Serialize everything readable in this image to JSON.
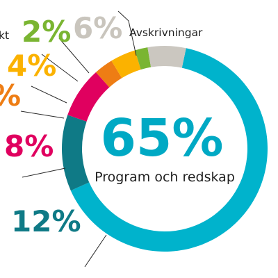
{
  "chart_data": {
    "type": "pie",
    "style": "donut",
    "slices": [
      {
        "label": "Program och redskap",
        "value": 65,
        "value_label": "65%",
        "color": "#00b3cc"
      },
      {
        "label": "",
        "value": 12,
        "value_label": "12%",
        "color": "#0f7a86"
      },
      {
        "label": "",
        "value": 8,
        "value_label": "8%",
        "color": "#e0005f"
      },
      {
        "label": "",
        "value": 3,
        "value_label": "%",
        "color": "#ee7d14"
      },
      {
        "label": "",
        "value": 4,
        "value_label": "4%",
        "color": "#fbb200"
      },
      {
        "label": "",
        "value": 2,
        "value_label": "2%",
        "color": "#7ab532"
      },
      {
        "label": "Avskrivningar",
        "value": 6,
        "value_label": "6%",
        "color": "#cbc7c0"
      }
    ],
    "center": {
      "value_label": "65%",
      "label": "Program och redskap"
    },
    "truncated_label": "kt"
  }
}
